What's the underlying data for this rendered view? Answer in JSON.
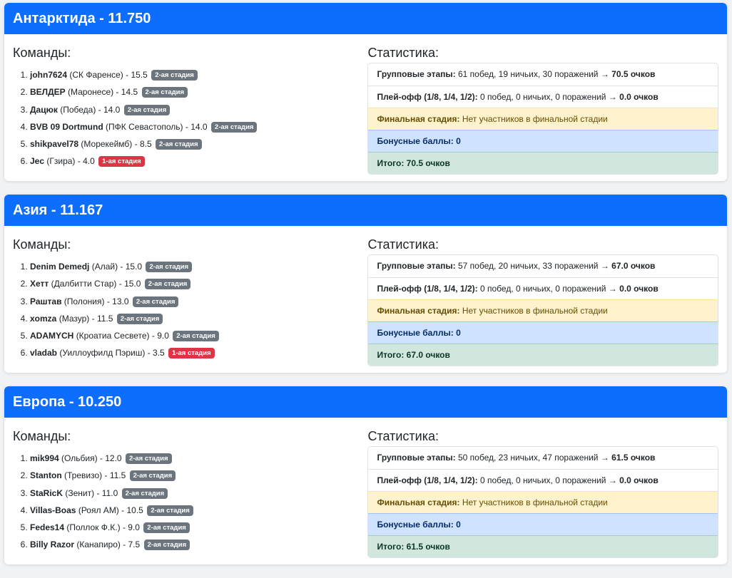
{
  "teams_heading": "Команды:",
  "stats_heading": "Статистика:",
  "colors": {
    "header": "#0d6efd",
    "badge_stage2": "#6c757d",
    "badge_stage1": "#dc3545"
  },
  "regions": [
    {
      "title": "Антарктида - 11.750",
      "teams": [
        {
          "name": "john7624",
          "club": "(СК Фаренсе)",
          "score": "- 15.5",
          "badge": "2-ая стадия",
          "stage": 2
        },
        {
          "name": "ВЕЛДЕР",
          "club": "(Маронесе)",
          "score": "- 14.5",
          "badge": "2-ая стадия",
          "stage": 2
        },
        {
          "name": "Дацюк",
          "club": "(Победа)",
          "score": "- 14.0",
          "badge": "2-ая стадия",
          "stage": 2
        },
        {
          "name": "BVB 09 Dortmund",
          "club": "(ПФК Севастополь)",
          "score": "- 14.0",
          "badge": "2-ая стадия",
          "stage": 2
        },
        {
          "name": "shikpavel78",
          "club": "(Морекеймб)",
          "score": "- 8.5",
          "badge": "2-ая стадия",
          "stage": 2
        },
        {
          "name": "Jec",
          "club": "(Гзира)",
          "score": "- 4.0",
          "badge": "1-ая стадия",
          "stage": 1
        }
      ],
      "stats": {
        "group_label": "Групповые этапы:",
        "group_text": "61 побед, 19 ничьих, 30 поражений →",
        "group_points": "70.5 очков",
        "playoff_label": "Плей-офф (1/8, 1/4, 1/2):",
        "playoff_text": "0 побед, 0 ничьих, 0 поражений →",
        "playoff_points": "0.0 очков",
        "final_label": "Финальная стадия:",
        "final_text": "Нет участников в финальной стадии",
        "bonus": "Бонусные баллы: 0",
        "total": "Итого: 70.5 очков"
      }
    },
    {
      "title": "Азия - 11.167",
      "teams": [
        {
          "name": "Denim Demedj",
          "club": "(Алай)",
          "score": "- 15.0",
          "badge": "2-ая стадия",
          "stage": 2
        },
        {
          "name": "Хетт",
          "club": "(Далбитти Стар)",
          "score": "- 15.0",
          "badge": "2-ая стадия",
          "stage": 2
        },
        {
          "name": "Раштав",
          "club": "(Полония)",
          "score": "- 13.0",
          "badge": "2-ая стадия",
          "stage": 2
        },
        {
          "name": "xomza",
          "club": "(Мазур)",
          "score": "- 11.5",
          "badge": "2-ая стадия",
          "stage": 2
        },
        {
          "name": "ADAMYCH",
          "club": "(Кроатиа Сесвете)",
          "score": "- 9.0",
          "badge": "2-ая стадия",
          "stage": 2
        },
        {
          "name": "vladab",
          "club": "(Уиллоуфилд Пэриш)",
          "score": "- 3.5",
          "badge": "1-ая стадия",
          "stage": 1
        }
      ],
      "stats": {
        "group_label": "Групповые этапы:",
        "group_text": "57 побед, 20 ничьих, 33 поражений →",
        "group_points": "67.0 очков",
        "playoff_label": "Плей-офф (1/8, 1/4, 1/2):",
        "playoff_text": "0 побед, 0 ничьих, 0 поражений →",
        "playoff_points": "0.0 очков",
        "final_label": "Финальная стадия:",
        "final_text": "Нет участников в финальной стадии",
        "bonus": "Бонусные баллы: 0",
        "total": "Итого: 67.0 очков"
      }
    },
    {
      "title": "Европа - 10.250",
      "teams": [
        {
          "name": "mik994",
          "club": "(Ольбия)",
          "score": "- 12.0",
          "badge": "2-ая стадия",
          "stage": 2
        },
        {
          "name": "Stanton",
          "club": "(Тревизо)",
          "score": "- 11.5",
          "badge": "2-ая стадия",
          "stage": 2
        },
        {
          "name": "StaRicK",
          "club": "(Зенит)",
          "score": "- 11.0",
          "badge": "2-ая стадия",
          "stage": 2
        },
        {
          "name": "Villas-Boas",
          "club": "(Роял АМ)",
          "score": "- 10.5",
          "badge": "2-ая стадия",
          "stage": 2
        },
        {
          "name": "Fedes14",
          "club": "(Поллок Ф.К.)",
          "score": "- 9.0",
          "badge": "2-ая стадия",
          "stage": 2
        },
        {
          "name": "Billy Razor",
          "club": "(Канапиро)",
          "score": "- 7.5",
          "badge": "2-ая стадия",
          "stage": 2
        }
      ],
      "stats": {
        "group_label": "Групповые этапы:",
        "group_text": "50 побед, 23 ничьих, 47 поражений →",
        "group_points": "61.5 очков",
        "playoff_label": "Плей-офф (1/8, 1/4, 1/2):",
        "playoff_text": "0 побед, 0 ничьих, 0 поражений →",
        "playoff_points": "0.0 очков",
        "final_label": "Финальная стадия:",
        "final_text": "Нет участников в финальной стадии",
        "bonus": "Бонусные баллы: 0",
        "total": "Итого: 61.5 очков"
      }
    }
  ]
}
